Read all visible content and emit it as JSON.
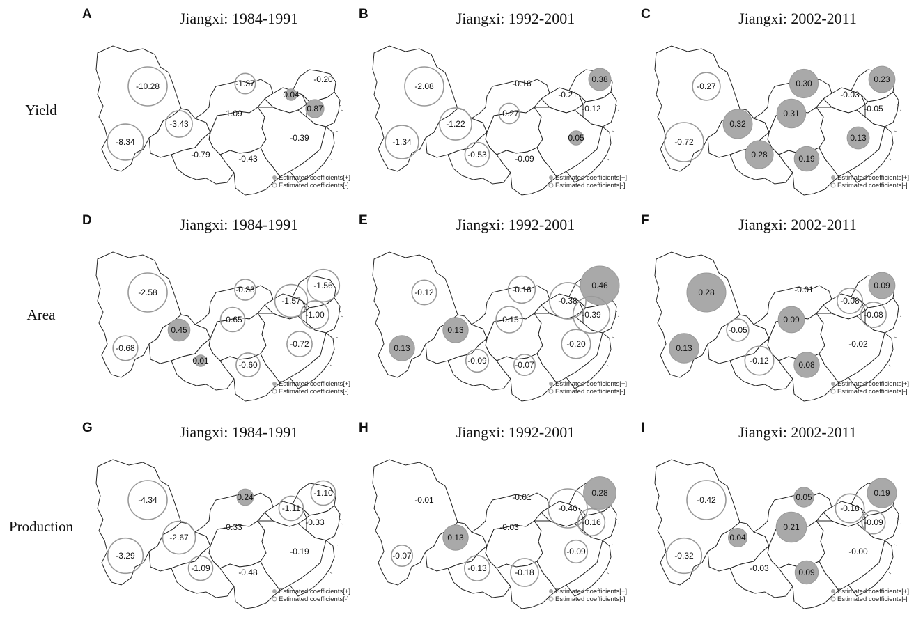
{
  "rows": [
    {
      "label": "Yield"
    },
    {
      "label": "Area"
    },
    {
      "label": "Production"
    }
  ],
  "legend": {
    "positive": "Estimated coefficients[+]",
    "negative": "Estimated coefficients[-]"
  },
  "colors": {
    "positive_fill": "#a9a9a9",
    "negative_stroke": "#999999",
    "outline": "#222222"
  },
  "panels": [
    {
      "letter": "A",
      "title": "Jiangxi: 1984-1991",
      "values": [
        "-10.28",
        "-8.34",
        "-3.43",
        "-1.37",
        "-1.09",
        "-0.79",
        "-0.43",
        "0.04",
        "-0.20",
        "0.87",
        "-0.39"
      ]
    },
    {
      "letter": "B",
      "title": "Jiangxi: 1992-2001",
      "values": [
        "-2.08",
        "-1.34",
        "-1.22",
        "-0.16",
        "-0.27",
        "-0.53",
        "-0.09",
        "-0.21",
        "0.38",
        "-0.12",
        "0.05"
      ]
    },
    {
      "letter": "C",
      "title": "Jiangxi: 2002-2011",
      "values": [
        "-0.27",
        "-0.72",
        "0.32",
        "0.30",
        "0.31",
        "0.28",
        "0.19",
        "-0.03",
        "0.23",
        "-0.05",
        "0.13"
      ]
    },
    {
      "letter": "D",
      "title": "Jiangxi: 1984-1991",
      "values": [
        "-2.58",
        "-0.68",
        "0.45",
        "-0.38",
        "-0.65",
        "0.01",
        "-0.60",
        "-1.57",
        "-1.56",
        "-1.00",
        "-0.72"
      ]
    },
    {
      "letter": "E",
      "title": "Jiangxi: 1992-2001",
      "values": [
        "-0.12",
        "0.13",
        "0.13",
        "-0.16",
        "-0.15",
        "-0.09",
        "-0.07",
        "-0.38",
        "0.46",
        "-0.39",
        "-0.20"
      ]
    },
    {
      "letter": "F",
      "title": "Jiangxi: 2002-2011",
      "values": [
        "0.28",
        "0.13",
        "-0.05",
        "-0.01",
        "0.09",
        "-0.12",
        "0.08",
        "-0.08",
        "0.09",
        "-0.08",
        "-0.02"
      ]
    },
    {
      "letter": "G",
      "title": "Jiangxi: 1984-1991",
      "values": [
        "-4.34",
        "-3.29",
        "-2.67",
        "0.24",
        "-0.33",
        "-1.09",
        "-0.48",
        "-1.11",
        "-1.10",
        "-0.33",
        "-0.19"
      ]
    },
    {
      "letter": "H",
      "title": "Jiangxi: 1992-2001",
      "values": [
        "-0.01",
        "-0.07",
        "0.13",
        "-0.01",
        "-0.03",
        "-0.13",
        "-0.18",
        "-0.46",
        "0.28",
        "-0.16",
        "-0.09"
      ]
    },
    {
      "letter": "I",
      "title": "Jiangxi: 2002-2011",
      "values": [
        "-0.42",
        "-0.32",
        "0.04",
        "0.05",
        "0.21",
        "-0.03",
        "0.09",
        "-0.18",
        "0.19",
        "-0.09",
        "-0.00"
      ]
    }
  ]
}
